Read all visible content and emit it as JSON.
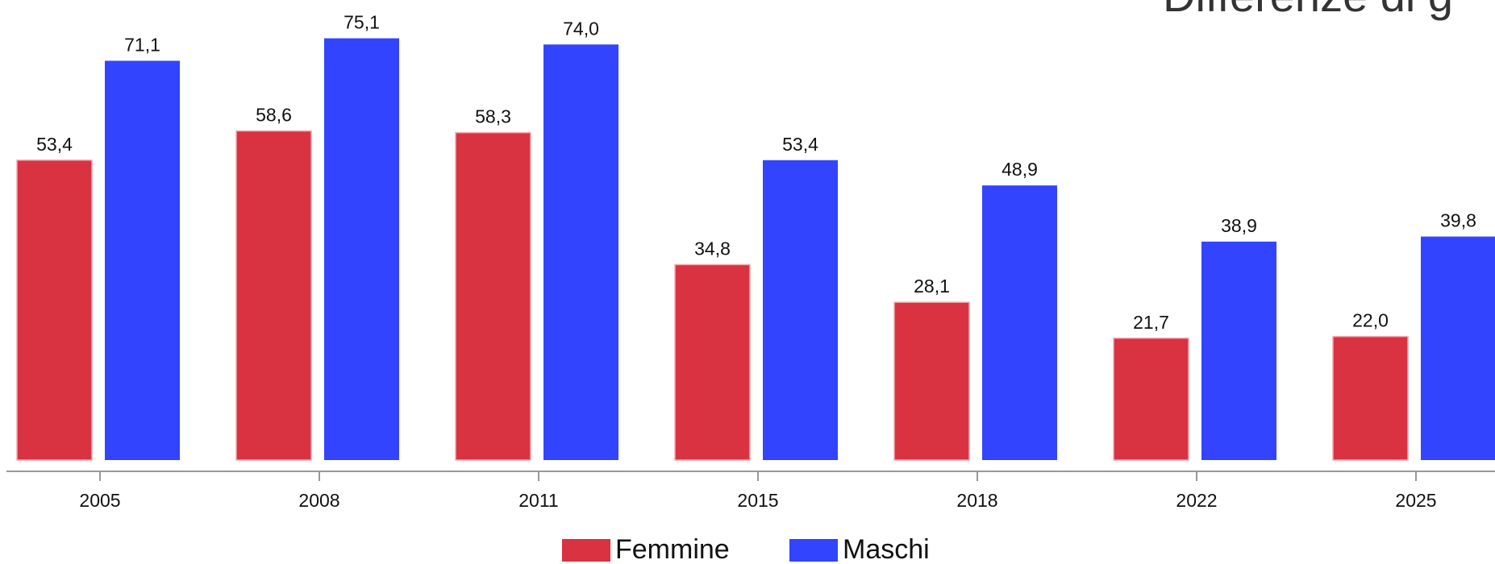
{
  "chart_data": {
    "type": "bar",
    "title": "Differenze di g",
    "categories": [
      "2005",
      "2008",
      "2011",
      "2015",
      "2018",
      "2022",
      "2025"
    ],
    "series": [
      {
        "name": "Femmine",
        "color": "#d93240",
        "values": [
          53.4,
          58.6,
          58.3,
          34.8,
          28.1,
          21.7,
          22.0
        ],
        "value_labels": [
          "53,4",
          "58,6",
          "58,3",
          "34,8",
          "28,1",
          "21,7",
          "22,0"
        ]
      },
      {
        "name": "Maschi",
        "color": "#3344ff",
        "values": [
          71.1,
          75.1,
          74.0,
          53.4,
          48.9,
          38.9,
          39.8
        ],
        "value_labels": [
          "71,1",
          "75,1",
          "74,0",
          "53,4",
          "48,9",
          "38,9",
          "39,8"
        ]
      }
    ],
    "legend": "bottom"
  }
}
